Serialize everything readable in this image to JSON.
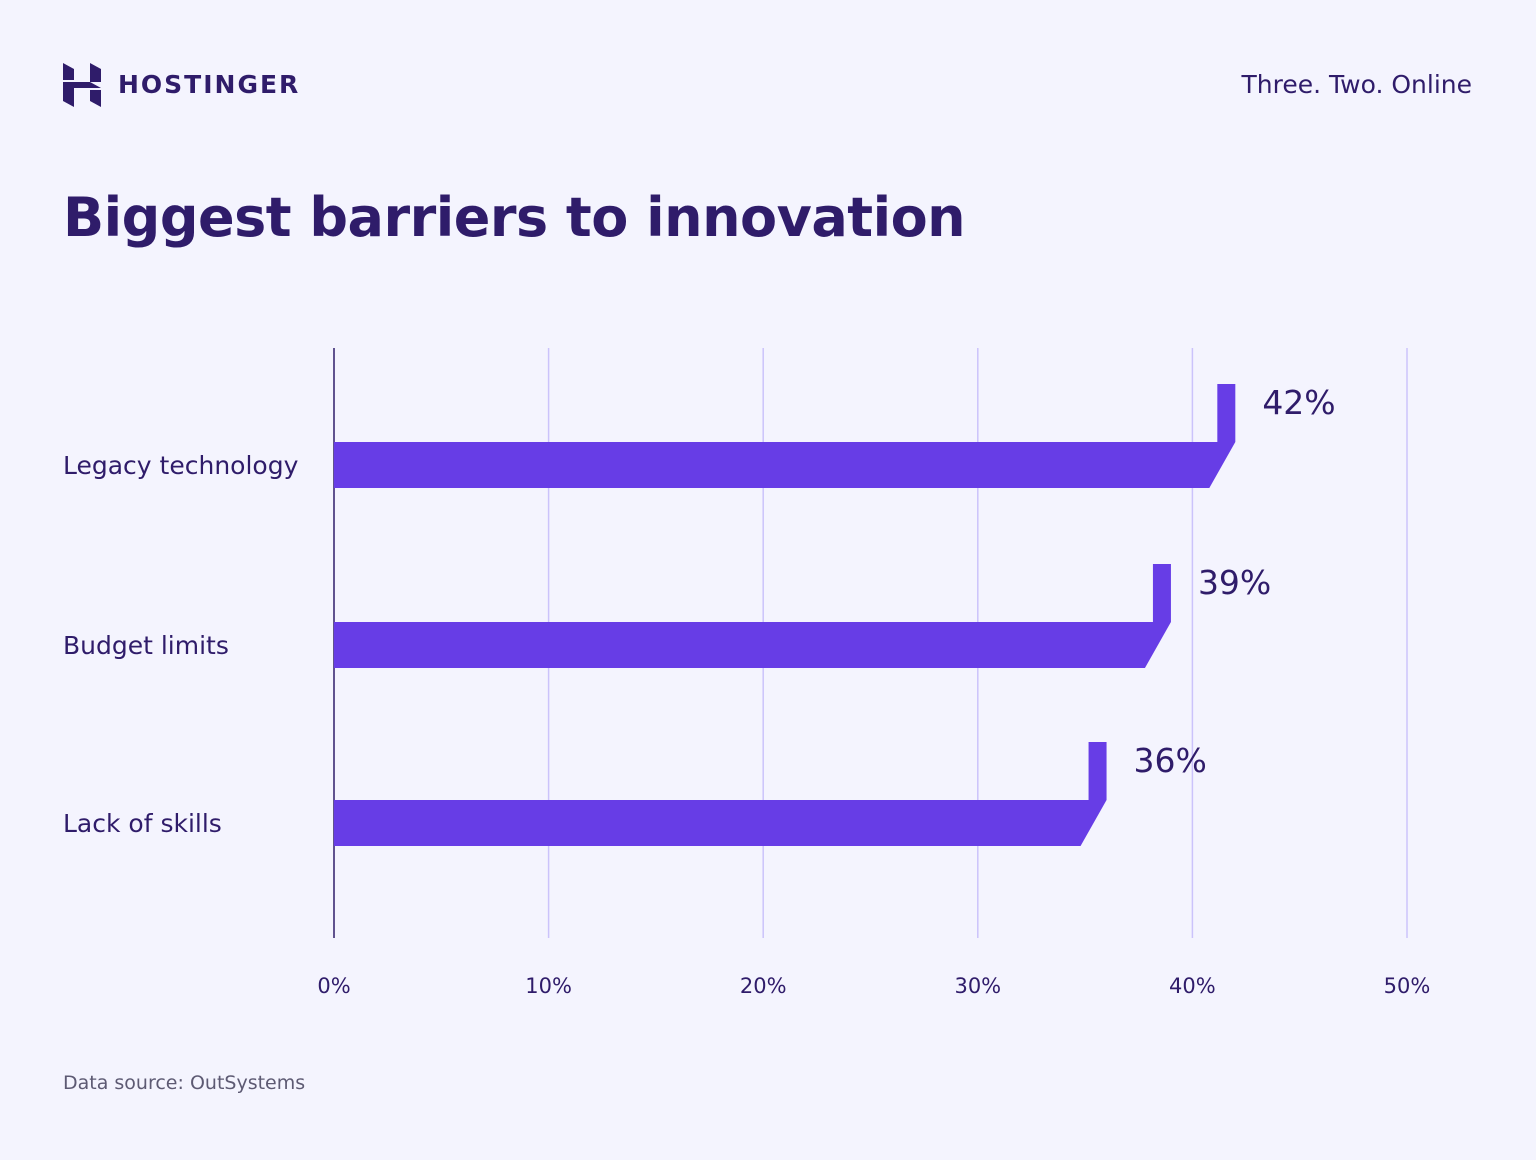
{
  "header": {
    "brand": "HOSTINGER",
    "tagline": "Three. Two. Online"
  },
  "footer": {
    "source": "Data source: OutSystems"
  },
  "colors": {
    "background": "#f4f4fe",
    "bar": "#673de6",
    "text": "#2f1c6a",
    "grid": "#cbc3fb"
  },
  "chart_data": {
    "type": "bar",
    "orientation": "horizontal",
    "title": "Biggest barriers to innovation",
    "categories": [
      "Legacy technology",
      "Budget limits",
      "Lack of skills"
    ],
    "values": [
      42,
      39,
      36
    ],
    "data_labels": [
      "42%",
      "39%",
      "36%"
    ],
    "xlim": [
      0,
      50
    ],
    "x_ticks": [
      0,
      10,
      20,
      30,
      40,
      50
    ],
    "x_tick_labels": [
      "0%",
      "10%",
      "20%",
      "30%",
      "40%",
      "50%"
    ],
    "grid": "vertical",
    "xlabel": "",
    "ylabel": ""
  }
}
